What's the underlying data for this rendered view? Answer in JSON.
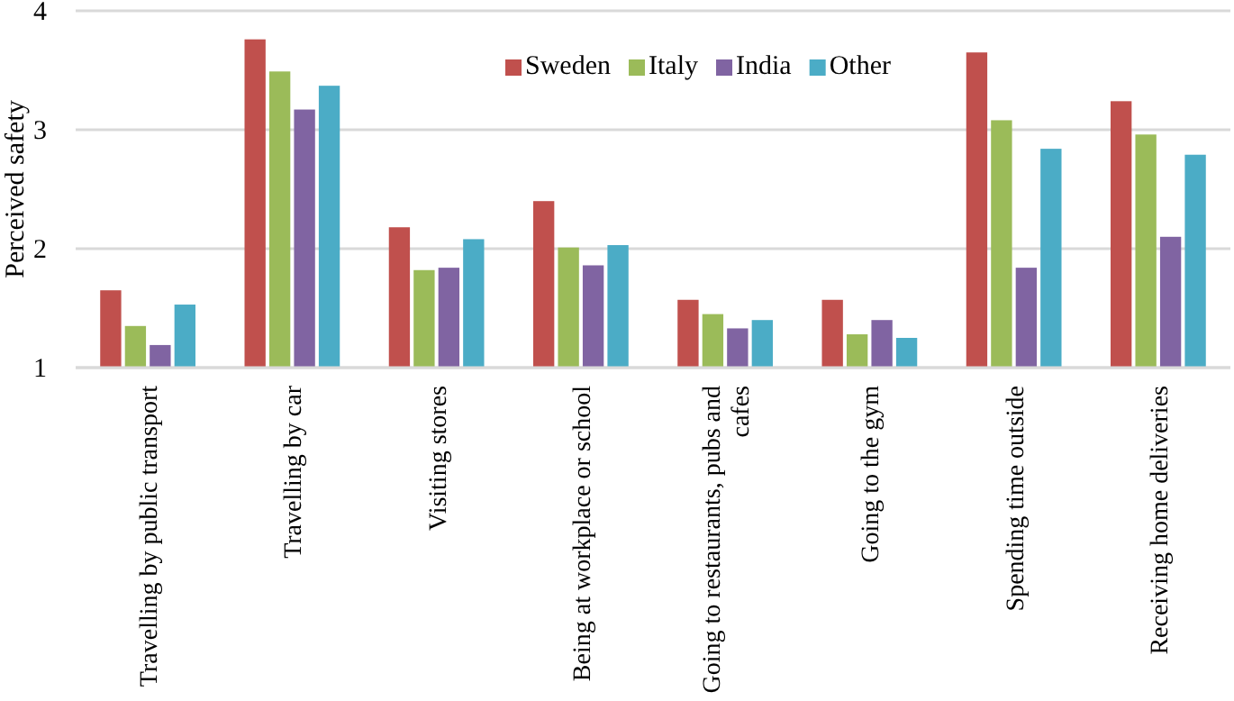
{
  "chart_data": {
    "type": "bar",
    "ylabel": "Perceived safety",
    "categories": [
      "Travelling by public transport",
      "Travelling by car",
      "Visiting stores",
      "Being at workplace or school",
      "Going to restaurants, pubs and cafes",
      "Going to the gym",
      "Spending time outside",
      "Receiving home deliveries"
    ],
    "series": [
      {
        "name": "Sweden",
        "color": "#c0504d",
        "values": [
          1.65,
          3.76,
          2.18,
          2.4,
          1.57,
          1.57,
          3.65,
          3.24
        ]
      },
      {
        "name": "Italy",
        "color": "#9bbb59",
        "values": [
          1.35,
          3.49,
          1.82,
          2.01,
          1.45,
          1.28,
          3.08,
          2.96
        ]
      },
      {
        "name": "India",
        "color": "#8064a2",
        "values": [
          1.19,
          3.17,
          1.84,
          1.86,
          1.33,
          1.4,
          1.84,
          2.1
        ]
      },
      {
        "name": "Other",
        "color": "#4bacc6",
        "values": [
          1.53,
          3.37,
          2.08,
          2.03,
          1.4,
          1.25,
          2.84,
          2.79
        ]
      }
    ],
    "ylim": [
      1,
      4
    ],
    "yticks": [
      1,
      2,
      3,
      4
    ],
    "grid": "y",
    "legend": "top"
  }
}
